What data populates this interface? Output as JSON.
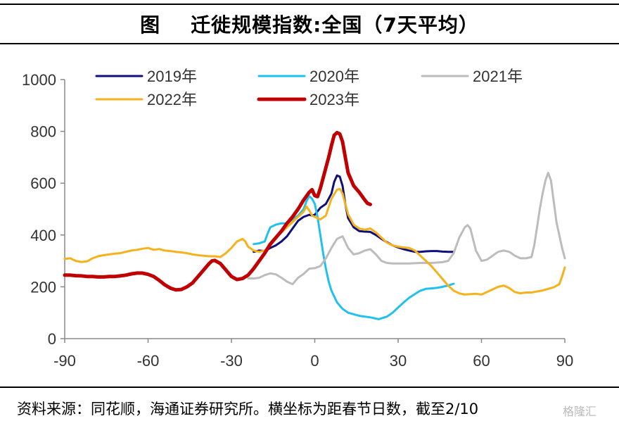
{
  "header": {
    "title": "图    迁徙规模指数:全国（7天平均）"
  },
  "footer": {
    "source": "资料来源：同花顺，海通证券研究所。横坐标为距春节日数，截至2/10",
    "watermark": "格隆汇"
  },
  "chart_data": {
    "type": "line",
    "title": "迁徙规模指数:全国（7天平均）",
    "xlabel": "",
    "ylabel": "",
    "xlim": [
      -90,
      90
    ],
    "ylim": [
      0,
      1000
    ],
    "x_ticks": [
      -90,
      -60,
      -30,
      0,
      30,
      60,
      90
    ],
    "y_ticks": [
      0,
      200,
      400,
      600,
      800,
      1000
    ],
    "grid": false,
    "legend": "top",
    "series": [
      {
        "name": "2019年",
        "color": "#0f0f7a",
        "width": 3,
        "points": [
          [
            -22,
            335
          ],
          [
            -20,
            340
          ],
          [
            -18,
            338
          ],
          [
            -16,
            350
          ],
          [
            -14,
            360
          ],
          [
            -12,
            375
          ],
          [
            -10,
            395
          ],
          [
            -8,
            425
          ],
          [
            -6,
            455
          ],
          [
            -4,
            470
          ],
          [
            -2,
            478
          ],
          [
            -1,
            475
          ],
          [
            0,
            478
          ],
          [
            2,
            505
          ],
          [
            4,
            520
          ],
          [
            6,
            560
          ],
          [
            7,
            605
          ],
          [
            8,
            630
          ],
          [
            9,
            625
          ],
          [
            10,
            590
          ],
          [
            11,
            520
          ],
          [
            12,
            465
          ],
          [
            14,
            430
          ],
          [
            16,
            415
          ],
          [
            18,
            413
          ],
          [
            20,
            412
          ],
          [
            22,
            400
          ],
          [
            24,
            385
          ],
          [
            26,
            372
          ],
          [
            28,
            360
          ],
          [
            30,
            352
          ],
          [
            32,
            345
          ],
          [
            34,
            340
          ],
          [
            36,
            335
          ],
          [
            38,
            335
          ],
          [
            40,
            337
          ],
          [
            42,
            338
          ],
          [
            44,
            338
          ],
          [
            46,
            336
          ],
          [
            48,
            335
          ],
          [
            50,
            335
          ]
        ]
      },
      {
        "name": "2020年",
        "color": "#22c0ee",
        "width": 3,
        "points": [
          [
            -22,
            365
          ],
          [
            -20,
            368
          ],
          [
            -18,
            375
          ],
          [
            -17,
            405
          ],
          [
            -16,
            430
          ],
          [
            -14,
            440
          ],
          [
            -12,
            445
          ],
          [
            -10,
            445
          ],
          [
            -8,
            460
          ],
          [
            -6,
            475
          ],
          [
            -4,
            500
          ],
          [
            -3,
            530
          ],
          [
            -2,
            550
          ],
          [
            -1,
            540
          ],
          [
            0,
            520
          ],
          [
            1,
            470
          ],
          [
            2,
            400
          ],
          [
            3,
            330
          ],
          [
            4,
            270
          ],
          [
            5,
            220
          ],
          [
            6,
            185
          ],
          [
            8,
            140
          ],
          [
            10,
            115
          ],
          [
            12,
            100
          ],
          [
            16,
            88
          ],
          [
            20,
            82
          ],
          [
            23,
            75
          ],
          [
            26,
            85
          ],
          [
            28,
            100
          ],
          [
            30,
            120
          ],
          [
            32,
            140
          ],
          [
            34,
            158
          ],
          [
            36,
            172
          ],
          [
            38,
            185
          ],
          [
            40,
            192
          ],
          [
            42,
            194
          ],
          [
            44,
            196
          ],
          [
            46,
            200
          ],
          [
            48,
            205
          ],
          [
            50,
            212
          ]
        ]
      },
      {
        "name": "2021年",
        "color": "#bcbcbc",
        "width": 3,
        "points": [
          [
            -24,
            233
          ],
          [
            -22,
            232
          ],
          [
            -20,
            235
          ],
          [
            -18,
            245
          ],
          [
            -16,
            252
          ],
          [
            -14,
            248
          ],
          [
            -12,
            235
          ],
          [
            -10,
            220
          ],
          [
            -8,
            210
          ],
          [
            -6,
            235
          ],
          [
            -4,
            250
          ],
          [
            -2,
            270
          ],
          [
            0,
            272
          ],
          [
            2,
            280
          ],
          [
            4,
            310
          ],
          [
            6,
            350
          ],
          [
            8,
            385
          ],
          [
            10,
            395
          ],
          [
            12,
            350
          ],
          [
            14,
            325
          ],
          [
            16,
            330
          ],
          [
            18,
            340
          ],
          [
            20,
            345
          ],
          [
            22,
            325
          ],
          [
            24,
            300
          ],
          [
            26,
            292
          ],
          [
            28,
            290
          ],
          [
            30,
            290
          ],
          [
            34,
            290
          ],
          [
            38,
            292
          ],
          [
            42,
            292
          ],
          [
            46,
            295
          ],
          [
            48,
            300
          ],
          [
            50,
            330
          ],
          [
            52,
            390
          ],
          [
            54,
            430
          ],
          [
            55,
            438
          ],
          [
            56,
            425
          ],
          [
            58,
            340
          ],
          [
            60,
            300
          ],
          [
            62,
            305
          ],
          [
            64,
            320
          ],
          [
            66,
            335
          ],
          [
            68,
            340
          ],
          [
            70,
            335
          ],
          [
            72,
            320
          ],
          [
            74,
            310
          ],
          [
            76,
            310
          ],
          [
            78,
            315
          ],
          [
            79,
            360
          ],
          [
            80,
            430
          ],
          [
            81,
            500
          ],
          [
            82,
            560
          ],
          [
            83,
            610
          ],
          [
            84,
            640
          ],
          [
            85,
            610
          ],
          [
            86,
            530
          ],
          [
            87,
            450
          ],
          [
            88,
            400
          ],
          [
            89,
            350
          ],
          [
            90,
            310
          ]
        ]
      },
      {
        "name": "2022年",
        "color": "#f5b21c",
        "width": 3,
        "points": [
          [
            -90,
            308
          ],
          [
            -88,
            310
          ],
          [
            -86,
            300
          ],
          [
            -84,
            296
          ],
          [
            -82,
            298
          ],
          [
            -80,
            310
          ],
          [
            -78,
            318
          ],
          [
            -76,
            322
          ],
          [
            -74,
            325
          ],
          [
            -72,
            328
          ],
          [
            -70,
            330
          ],
          [
            -68,
            335
          ],
          [
            -66,
            340
          ],
          [
            -64,
            343
          ],
          [
            -62,
            347
          ],
          [
            -60,
            350
          ],
          [
            -58,
            343
          ],
          [
            -56,
            346
          ],
          [
            -54,
            340
          ],
          [
            -52,
            338
          ],
          [
            -50,
            335
          ],
          [
            -48,
            333
          ],
          [
            -46,
            330
          ],
          [
            -44,
            325
          ],
          [
            -42,
            322
          ],
          [
            -40,
            320
          ],
          [
            -38,
            318
          ],
          [
            -36,
            318
          ],
          [
            -34,
            315
          ],
          [
            -32,
            330
          ],
          [
            -30,
            350
          ],
          [
            -28,
            375
          ],
          [
            -26,
            385
          ],
          [
            -25,
            375
          ],
          [
            -24,
            355
          ],
          [
            -22,
            340
          ],
          [
            -20,
            335
          ],
          [
            -18,
            340
          ],
          [
            -16,
            360
          ],
          [
            -14,
            390
          ],
          [
            -12,
            410
          ],
          [
            -10,
            430
          ],
          [
            -8,
            450
          ],
          [
            -6,
            470
          ],
          [
            -4,
            490
          ],
          [
            -3,
            510
          ],
          [
            -2,
            495
          ],
          [
            -1,
            475
          ],
          [
            0,
            470
          ],
          [
            2,
            460
          ],
          [
            4,
            475
          ],
          [
            6,
            540
          ],
          [
            8,
            575
          ],
          [
            9,
            578
          ],
          [
            10,
            560
          ],
          [
            11,
            520
          ],
          [
            12,
            480
          ],
          [
            14,
            440
          ],
          [
            16,
            425
          ],
          [
            18,
            420
          ],
          [
            20,
            425
          ],
          [
            22,
            410
          ],
          [
            24,
            390
          ],
          [
            26,
            370
          ],
          [
            28,
            360
          ],
          [
            30,
            355
          ],
          [
            32,
            352
          ],
          [
            34,
            350
          ],
          [
            36,
            340
          ],
          [
            38,
            320
          ],
          [
            40,
            300
          ],
          [
            42,
            280
          ],
          [
            44,
            255
          ],
          [
            46,
            230
          ],
          [
            48,
            205
          ],
          [
            50,
            185
          ],
          [
            52,
            175
          ],
          [
            54,
            170
          ],
          [
            56,
            172
          ],
          [
            58,
            173
          ],
          [
            60,
            170
          ],
          [
            62,
            180
          ],
          [
            64,
            190
          ],
          [
            66,
            200
          ],
          [
            68,
            205
          ],
          [
            70,
            195
          ],
          [
            72,
            180
          ],
          [
            74,
            175
          ],
          [
            76,
            178
          ],
          [
            78,
            178
          ],
          [
            80,
            182
          ],
          [
            82,
            186
          ],
          [
            84,
            192
          ],
          [
            86,
            198
          ],
          [
            88,
            210
          ],
          [
            89,
            240
          ],
          [
            90,
            275
          ]
        ]
      },
      {
        "name": "2023年",
        "color": "#c00000",
        "width": 5,
        "points": [
          [
            -90,
            245
          ],
          [
            -88,
            245
          ],
          [
            -86,
            243
          ],
          [
            -84,
            242
          ],
          [
            -82,
            240
          ],
          [
            -80,
            240
          ],
          [
            -78,
            238
          ],
          [
            -76,
            238
          ],
          [
            -74,
            240
          ],
          [
            -72,
            240
          ],
          [
            -70,
            242
          ],
          [
            -68,
            245
          ],
          [
            -66,
            250
          ],
          [
            -64,
            253
          ],
          [
            -62,
            253
          ],
          [
            -60,
            248
          ],
          [
            -58,
            240
          ],
          [
            -56,
            225
          ],
          [
            -54,
            208
          ],
          [
            -52,
            195
          ],
          [
            -50,
            188
          ],
          [
            -48,
            190
          ],
          [
            -46,
            200
          ],
          [
            -44,
            215
          ],
          [
            -42,
            240
          ],
          [
            -40,
            265
          ],
          [
            -38,
            290
          ],
          [
            -37,
            300
          ],
          [
            -36,
            302
          ],
          [
            -34,
            290
          ],
          [
            -32,
            265
          ],
          [
            -30,
            240
          ],
          [
            -28,
            228
          ],
          [
            -26,
            232
          ],
          [
            -24,
            245
          ],
          [
            -22,
            270
          ],
          [
            -20,
            300
          ],
          [
            -18,
            330
          ],
          [
            -16,
            365
          ],
          [
            -14,
            390
          ],
          [
            -12,
            415
          ],
          [
            -10,
            445
          ],
          [
            -8,
            470
          ],
          [
            -6,
            500
          ],
          [
            -4,
            535
          ],
          [
            -2,
            565
          ],
          [
            -1,
            575
          ],
          [
            0,
            552
          ],
          [
            1,
            548
          ],
          [
            2,
            580
          ],
          [
            3,
            620
          ],
          [
            4,
            660
          ],
          [
            5,
            700
          ],
          [
            6,
            745
          ],
          [
            7,
            785
          ],
          [
            8,
            795
          ],
          [
            9,
            790
          ],
          [
            10,
            760
          ],
          [
            11,
            700
          ],
          [
            12,
            640
          ],
          [
            14,
            590
          ],
          [
            16,
            565
          ],
          [
            18,
            535
          ],
          [
            19,
            522
          ],
          [
            20,
            518
          ]
        ]
      }
    ]
  }
}
